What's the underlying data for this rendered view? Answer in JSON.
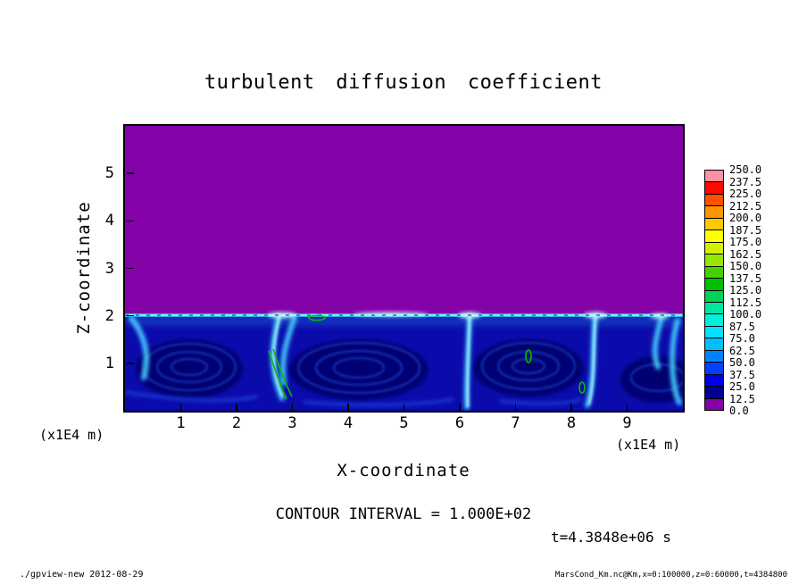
{
  "title": "turbulent diffusion coefficient",
  "axes": {
    "x_label": "X-coordinate",
    "z_label": "Z-coordinate",
    "x_unit_label": "(x1E4 m)",
    "z_unit_label": "(x1E4 m)"
  },
  "annotations": {
    "contour_interval": "CONTOUR INTERVAL = 1.000E+02",
    "time": "t=4.3848e+06 s"
  },
  "footer": {
    "left": "./gpview-new  2012-08-29",
    "right": "MarsCond_Km.nc@Km,x=0:100000,z=0:60000,t=4384800"
  },
  "chart_data": {
    "type": "heatmap",
    "title": "turbulent diffusion coefficient",
    "xlabel": "X-coordinate (x1E4 m)",
    "ylabel": "Z-coordinate (x1E4 m)",
    "x_axis": {
      "min": 0,
      "max": 10,
      "ticks": [
        1,
        2,
        3,
        4,
        5,
        6,
        7,
        8,
        9
      ]
    },
    "z_axis": {
      "min": 0,
      "max": 6,
      "ticks": [
        1,
        2,
        3,
        4,
        5
      ]
    },
    "contour_interval": 100.0,
    "time_s": 4384800,
    "colorbar": {
      "levels": [
        0.0,
        12.5,
        25.0,
        37.5,
        50.0,
        62.5,
        75.0,
        87.5,
        100.0,
        112.5,
        125.0,
        137.5,
        150.0,
        162.5,
        175.0,
        187.5,
        200.0,
        212.5,
        225.0,
        237.5,
        250.0
      ],
      "colors_bottom_to_top": [
        "#8303A8",
        "#000096",
        "#0000E6",
        "#0041FF",
        "#0082FF",
        "#00BEFF",
        "#00E1FF",
        "#00F0DC",
        "#00E6A0",
        "#00D25A",
        "#00BE00",
        "#46D200",
        "#96E600",
        "#D2F000",
        "#FFFF00",
        "#FFC800",
        "#FF9600",
        "#FF5000",
        "#FF0A00",
        "#FF91A5"
      ]
    },
    "field_description": "Coefficient ~0 (purple, lowest bin) everywhere above z=2x1E4 m; convective boundary layer below z=2x1E4 m with dark-blue cell cores (~12.5-37.5), bright cyan plumes and a thin bright layer at the top of the layer (~50-100), and small green contour segments at the 100 level."
  }
}
